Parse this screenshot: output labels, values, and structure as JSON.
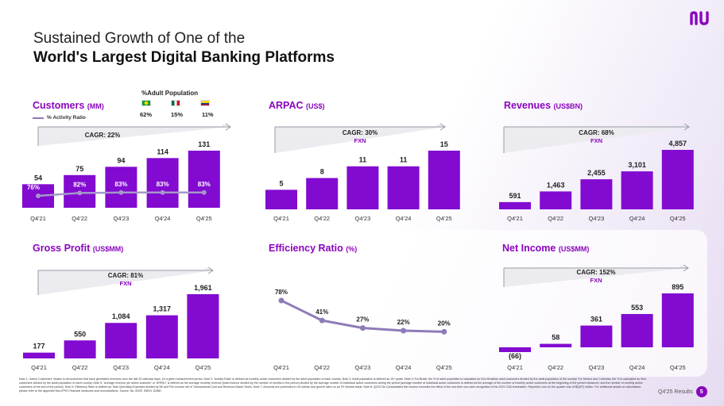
{
  "title": {
    "line1": "Sustained Growth of One of the",
    "line2": "World's Largest Digital Banking Platforms"
  },
  "logo_text": "nu",
  "colors": {
    "bar": "#820ad1",
    "accent": "#8a05be",
    "line": "#8f7bb8",
    "arrow_bg": "#ececf0"
  },
  "adult_population": {
    "label": "%Adult Population",
    "countries": [
      {
        "flag": "brazil-flag-icon",
        "value": "62%"
      },
      {
        "flag": "mexico-flag-icon",
        "value": "15%"
      },
      {
        "flag": "colombia-flag-icon",
        "value": "11%"
      }
    ]
  },
  "activity_legend": "% Activity Ratio",
  "chart_data": [
    {
      "id": "customers",
      "type": "bar",
      "title": "Customers",
      "unit": "(MM)",
      "categories": [
        "Q4'21",
        "Q4'22",
        "Q4'23",
        "Q4'24",
        "Q4'25"
      ],
      "values": [
        54,
        75,
        94,
        114,
        131
      ],
      "labels": [
        "54",
        "75",
        "94",
        "114",
        "131"
      ],
      "cagr": "CAGR: 22%",
      "cagr_sub": "",
      "line_series": {
        "name": "% Activity Ratio",
        "values": [
          76,
          82,
          83,
          83,
          83
        ],
        "labels": [
          "76%",
          "82%",
          "83%",
          "83%",
          "83%"
        ]
      }
    },
    {
      "id": "arpac",
      "type": "bar",
      "title": "ARPAC",
      "unit": "(US$)",
      "categories": [
        "Q4'21",
        "Q4'22",
        "Q4'23",
        "Q4'24",
        "Q4'25"
      ],
      "values": [
        5,
        8,
        11,
        11,
        15
      ],
      "labels": [
        "5",
        "8",
        "11",
        "11",
        "15"
      ],
      "cagr": "CAGR: 30%",
      "cagr_sub": "FXN"
    },
    {
      "id": "revenues",
      "type": "bar",
      "title": "Revenues",
      "unit": "(US$BN)",
      "categories": [
        "Q4'21",
        "Q4'22",
        "Q4'23",
        "Q4'24",
        "Q4'25"
      ],
      "values": [
        591,
        1463,
        2455,
        3101,
        4857
      ],
      "labels": [
        "591",
        "1,463",
        "2,455",
        "3,101",
        "4,857"
      ],
      "cagr": "CAGR: 68%",
      "cagr_sub": "FXN"
    },
    {
      "id": "gross_profit",
      "type": "bar",
      "title": "Gross Profit",
      "unit": "(US$MM)",
      "categories": [
        "Q4'21",
        "Q4'22",
        "Q4'23",
        "Q4'24",
        "Q4'25"
      ],
      "values": [
        177,
        550,
        1084,
        1317,
        1961
      ],
      "labels": [
        "177",
        "550",
        "1,084",
        "1,317",
        "1,961"
      ],
      "cagr": "CAGR: 81%",
      "cagr_sub": "FXN"
    },
    {
      "id": "efficiency",
      "type": "line",
      "title": "Efficiency Ratio",
      "unit": "(%)",
      "categories": [
        "Q4'21",
        "Q4'22",
        "Q4'23",
        "Q4'24",
        "Q4'25"
      ],
      "values": [
        78,
        41,
        27,
        22,
        20
      ],
      "labels": [
        "78%",
        "41%",
        "27%",
        "22%",
        "20%"
      ]
    },
    {
      "id": "net_income",
      "type": "bar",
      "title": "Net Income",
      "unit": "(US$MM)",
      "categories": [
        "Q4'21",
        "Q4'22",
        "Q4'23",
        "Q4'24",
        "Q4'25"
      ],
      "values": [
        -66,
        58,
        361,
        553,
        895
      ],
      "labels": [
        "(66)",
        "58",
        "361",
        "553",
        "895"
      ],
      "cagr": "CAGR: 152%",
      "cagr_sub": "FXN"
    }
  ],
  "footnote": "Note 1: 'Active Customers' relates to all customers that have generated revenues over the last 30 calendar days, for a given measurement period. Note 2: 'Activity Ratio' is defined as monthly active customers divided by the adult population of each country. Note 3: Adult population is defined as 15+ years. Note 4: For Brazil, the % of adult population is calculated as Nu's Brazilian adult customers divided by the adult population of the country. For Mexico and Colombia, the % is calculated as Nu's customers divided by the adult population of each country. Note 5: 'Average revenue per active customer' or 'ARPAC' is defined as the average monthly revenue (total revenue divided by the number of months in the period) divided by the average number of individual active customers during the period (average number of individual active customers is defined as the average of the number of monthly active customers at the beginning of the period measured, and the number of monthly active customers at the end of the period). Note 6: Efficiency Ratio is defined as Total Operating Expenses divided by NII and Fee Income net of Transactional Cost and Revenue-Based Taxes. Note 7: Amounts are presented in US dollars and growth rates on an FX Neutral basis. Note 8: Q4'22 Nu Consolidated Net Income excludes the effect of the one-time non-cash recognition of the 2021 CSA termination. Reported Loss for the quarter was US$(397) million. For additional details on calculations please refer to the appendix Non-IFRS Financial measures and reconciliations. Source: Nu, IBGE, INEGI, DANE.",
  "page": {
    "label": "Q4'25 Results",
    "number": "5"
  }
}
